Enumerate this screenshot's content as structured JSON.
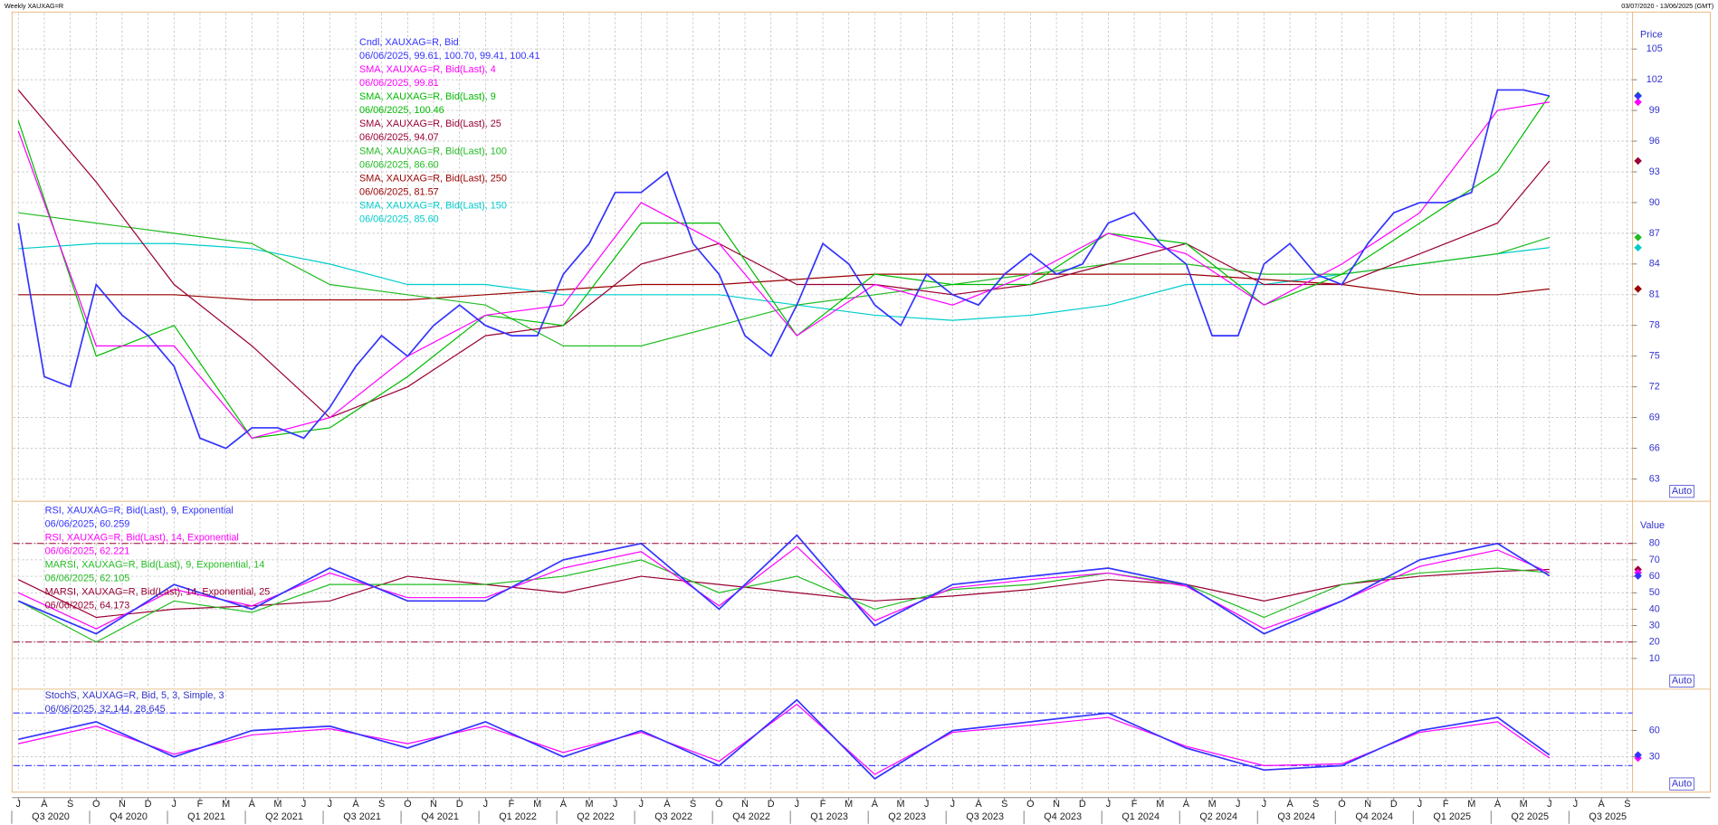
{
  "header": {
    "title": "Weekly XAUXAG=R",
    "range": "03/07/2020 - 13/06/2025 (GMT)"
  },
  "chart_data": [
    {
      "type": "line",
      "y_title": "Price",
      "auto_label": "Auto",
      "xlim": [
        -0.2,
        62.2
      ],
      "ylim": [
        61.1,
        108.5
      ],
      "yticks": [
        63,
        66,
        69,
        72,
        75,
        78,
        81,
        84,
        87,
        90,
        93,
        96,
        99,
        102,
        105
      ],
      "grid": true,
      "series": [
        {
          "name": "Cndl, XAUXAG=R, Bid",
          "legend_value": "06/06/2025, 99.61, 100.70, 99.41, 100.41",
          "color": "#3333ff",
          "x": [
            0,
            1,
            2,
            3,
            4,
            5,
            6,
            7,
            8,
            9,
            10,
            11,
            12,
            13,
            14,
            15,
            16,
            17,
            18,
            19,
            20,
            21,
            22,
            23,
            24,
            25,
            26,
            27,
            28,
            29,
            30,
            31,
            32,
            33,
            34,
            35,
            36,
            37,
            38,
            39,
            40,
            41,
            42,
            43,
            44,
            45,
            46,
            47,
            48,
            49,
            50,
            51,
            52,
            53,
            54,
            55,
            56,
            57,
            58,
            59
          ],
          "values": [
            88,
            73,
            72,
            82,
            79,
            77,
            74,
            67,
            66,
            68,
            68,
            67,
            70,
            74,
            77,
            75,
            78,
            80,
            78,
            77,
            77,
            83,
            86,
            91,
            91,
            93,
            86,
            83,
            77,
            75,
            80,
            86,
            84,
            80,
            78,
            83,
            81,
            80,
            83,
            85,
            83,
            84,
            88,
            89,
            86,
            84,
            77,
            77,
            84,
            86,
            83,
            82,
            86,
            89,
            90,
            90,
            91,
            101,
            101,
            100.41
          ]
        },
        {
          "name": "SMA, XAUXAG=R, Bid(Last),  4",
          "legend_value": "06/06/2025, 99.81",
          "color": "#ff00ff",
          "x": [
            0,
            3,
            6,
            9,
            12,
            15,
            18,
            21,
            24,
            27,
            30,
            33,
            36,
            39,
            42,
            45,
            48,
            51,
            54,
            57,
            59
          ],
          "values": [
            97,
            76,
            76,
            67,
            69,
            75,
            79,
            80,
            90,
            86,
            77,
            82,
            80,
            83,
            87,
            85,
            80,
            84,
            89,
            99,
            99.81
          ]
        },
        {
          "name": "SMA, XAUXAG=R, Bid(Last),  9",
          "legend_value": "06/06/2025, 100.46",
          "color": "#00bb00",
          "x": [
            0,
            3,
            6,
            9,
            12,
            15,
            18,
            21,
            24,
            27,
            30,
            33,
            36,
            39,
            42,
            45,
            48,
            51,
            54,
            57,
            59
          ],
          "values": [
            98,
            75,
            78,
            67,
            68,
            73,
            79,
            78,
            88,
            88,
            77,
            83,
            82,
            82,
            87,
            86,
            80,
            83,
            88,
            93,
            100.46
          ]
        },
        {
          "name": "SMA, XAUXAG=R, Bid(Last),  25",
          "legend_value": "06/06/2025, 94.07",
          "color": "#990033",
          "x": [
            0,
            3,
            6,
            9,
            12,
            15,
            18,
            21,
            24,
            27,
            30,
            33,
            36,
            39,
            42,
            45,
            48,
            51,
            54,
            57,
            59
          ],
          "values": [
            101,
            92,
            82,
            76,
            69,
            72,
            77,
            78,
            84,
            86,
            82,
            82,
            81,
            82,
            84,
            86,
            82,
            82,
            85,
            88,
            94.07
          ]
        },
        {
          "name": "SMA, XAUXAG=R, Bid(Last),  100",
          "legend_value": "06/06/2025, 86.60",
          "color": "#22bb22",
          "x": [
            0,
            3,
            6,
            9,
            12,
            15,
            18,
            21,
            24,
            27,
            30,
            33,
            36,
            39,
            42,
            45,
            48,
            51,
            54,
            57,
            59
          ],
          "values": [
            89,
            88,
            87,
            86,
            82,
            81,
            80,
            76,
            76,
            78,
            80,
            81,
            82,
            83,
            84,
            84,
            83,
            83,
            84,
            85,
            86.6
          ]
        },
        {
          "name": "SMA, XAUXAG=R, Bid(Last),  250",
          "legend_value": "06/06/2025, 81.57",
          "color": "#990000",
          "x": [
            0,
            3,
            6,
            9,
            12,
            15,
            18,
            21,
            24,
            27,
            30,
            33,
            36,
            39,
            42,
            45,
            48,
            51,
            54,
            57,
            59
          ],
          "values": [
            81,
            81,
            81,
            80.5,
            80.5,
            80.5,
            81,
            81.5,
            82,
            82,
            82.5,
            83,
            83,
            83,
            83,
            83,
            82.5,
            82,
            81,
            81,
            81.57
          ]
        },
        {
          "name": "SMA, XAUXAG=R, Bid(Last),  150",
          "legend_value": "06/06/2025, 85.60",
          "color": "#00cccc",
          "x": [
            0,
            3,
            6,
            9,
            12,
            15,
            18,
            21,
            24,
            27,
            30,
            33,
            36,
            39,
            42,
            45,
            48,
            51,
            54,
            57,
            59
          ],
          "values": [
            85.5,
            86,
            86,
            85.5,
            84,
            82,
            82,
            81,
            81,
            81,
            80,
            79,
            78.5,
            79,
            80,
            82,
            82,
            83,
            84,
            85,
            85.6
          ]
        }
      ]
    },
    {
      "type": "line",
      "y_title": "Value",
      "auto_label": "Auto",
      "xlim": [
        -0.2,
        62.2
      ],
      "ylim": [
        -8,
        104
      ],
      "yticks": [
        10,
        20,
        30,
        40,
        50,
        60,
        70,
        80
      ],
      "hlines": [
        80,
        20
      ],
      "hline_color": "#990033",
      "grid": true,
      "series": [
        {
          "name": "RSI, XAUXAG=R, Bid(Last),  9, Exponential",
          "legend_value": "06/06/2025, 60.259",
          "color": "#3333ff",
          "x": [
            0,
            3,
            6,
            9,
            12,
            15,
            18,
            21,
            24,
            27,
            30,
            33,
            36,
            39,
            42,
            45,
            48,
            51,
            54,
            57,
            59
          ],
          "values": [
            45,
            25,
            55,
            40,
            65,
            45,
            45,
            70,
            80,
            40,
            85,
            30,
            55,
            60,
            65,
            55,
            25,
            45,
            70,
            80,
            60.259
          ]
        },
        {
          "name": "RSI, XAUXAG=R, Bid(Last),  14, Exponential",
          "legend_value": "06/06/2025, 62.221",
          "color": "#ff00ff",
          "x": [
            0,
            3,
            6,
            9,
            12,
            15,
            18,
            21,
            24,
            27,
            30,
            33,
            36,
            39,
            42,
            45,
            48,
            51,
            54,
            57,
            59
          ],
          "values": [
            50,
            28,
            52,
            42,
            62,
            47,
            47,
            65,
            75,
            42,
            78,
            33,
            53,
            58,
            62,
            54,
            28,
            45,
            66,
            76,
            62.221
          ]
        },
        {
          "name": "MARSI, XAUXAG=R, Bid(Last),  9, Exponential, 14",
          "legend_value": "06/06/2025, 62.105",
          "color": "#22bb22",
          "x": [
            0,
            3,
            6,
            9,
            12,
            15,
            18,
            21,
            24,
            27,
            30,
            33,
            36,
            39,
            42,
            45,
            48,
            51,
            54,
            57,
            59
          ],
          "values": [
            45,
            20,
            45,
            38,
            55,
            55,
            55,
            60,
            70,
            50,
            60,
            40,
            52,
            55,
            62,
            55,
            35,
            55,
            62,
            65,
            62.105
          ]
        },
        {
          "name": "MARSI, XAUXAG=R, Bid(Last),  14, Exponential, 25",
          "legend_value": "06/06/2025, 64.173",
          "color": "#990033",
          "x": [
            0,
            3,
            6,
            9,
            12,
            15,
            18,
            21,
            24,
            27,
            30,
            33,
            36,
            39,
            42,
            45,
            48,
            51,
            54,
            57,
            59
          ],
          "values": [
            58,
            35,
            40,
            42,
            45,
            60,
            55,
            50,
            60,
            55,
            50,
            45,
            48,
            52,
            58,
            55,
            45,
            55,
            60,
            63,
            64.173
          ]
        }
      ]
    },
    {
      "type": "line",
      "legend": "StochS, XAUXAG=R, Bid,  5, 3, Simple, 3",
      "legend_value": "06/06/2025, 32.144, 28.645",
      "auto_label": "Auto",
      "xlim": [
        -0.2,
        62.2
      ],
      "ylim": [
        -9,
        106
      ],
      "yticks": [
        30,
        60
      ],
      "hlines": [
        80,
        20
      ],
      "hline_color": "#3333ff",
      "grid": true,
      "series": [
        {
          "color": "#3333ff",
          "x": [
            0,
            3,
            6,
            9,
            12,
            15,
            18,
            21,
            24,
            27,
            30,
            33,
            36,
            39,
            42,
            45,
            48,
            51,
            54,
            57,
            59
          ],
          "values": [
            50,
            70,
            30,
            60,
            65,
            40,
            70,
            30,
            60,
            20,
            95,
            5,
            60,
            70,
            80,
            40,
            15,
            20,
            60,
            75,
            32.144
          ]
        },
        {
          "color": "#ff00ff",
          "x": [
            0,
            3,
            6,
            9,
            12,
            15,
            18,
            21,
            24,
            27,
            30,
            33,
            36,
            39,
            42,
            45,
            48,
            51,
            54,
            57,
            59
          ],
          "values": [
            45,
            65,
            33,
            55,
            62,
            45,
            65,
            35,
            58,
            25,
            90,
            10,
            58,
            66,
            75,
            42,
            20,
            22,
            58,
            70,
            28.645
          ]
        }
      ],
      "xticks": [
        {
          "value": 0,
          "label": "J"
        },
        {
          "value": 1,
          "label": "A"
        },
        {
          "value": 2,
          "label": "S"
        },
        {
          "value": 3,
          "label": "O"
        },
        {
          "value": 4,
          "label": "N"
        },
        {
          "value": 5,
          "label": "D"
        },
        {
          "value": 6,
          "label": "J"
        },
        {
          "value": 7,
          "label": "F"
        },
        {
          "value": 8,
          "label": "M"
        },
        {
          "value": 9,
          "label": "A"
        },
        {
          "value": 10,
          "label": "M"
        },
        {
          "value": 11,
          "label": "J"
        },
        {
          "value": 12,
          "label": "J"
        },
        {
          "value": 13,
          "label": "A"
        },
        {
          "value": 14,
          "label": "S"
        },
        {
          "value": 15,
          "label": "O"
        },
        {
          "value": 16,
          "label": "N"
        },
        {
          "value": 17,
          "label": "D"
        },
        {
          "value": 18,
          "label": "J"
        },
        {
          "value": 19,
          "label": "F"
        },
        {
          "value": 20,
          "label": "M"
        },
        {
          "value": 21,
          "label": "A"
        },
        {
          "value": 22,
          "label": "M"
        },
        {
          "value": 23,
          "label": "J"
        },
        {
          "value": 24,
          "label": "J"
        },
        {
          "value": 25,
          "label": "A"
        },
        {
          "value": 26,
          "label": "S"
        },
        {
          "value": 27,
          "label": "O"
        },
        {
          "value": 28,
          "label": "N"
        },
        {
          "value": 29,
          "label": "D"
        },
        {
          "value": 30,
          "label": "J"
        },
        {
          "value": 31,
          "label": "F"
        },
        {
          "value": 32,
          "label": "M"
        },
        {
          "value": 33,
          "label": "A"
        },
        {
          "value": 34,
          "label": "M"
        },
        {
          "value": 35,
          "label": "J"
        },
        {
          "value": 36,
          "label": "J"
        },
        {
          "value": 37,
          "label": "A"
        },
        {
          "value": 38,
          "label": "S"
        },
        {
          "value": 39,
          "label": "O"
        },
        {
          "value": 40,
          "label": "N"
        },
        {
          "value": 41,
          "label": "D"
        },
        {
          "value": 42,
          "label": "J"
        },
        {
          "value": 43,
          "label": "F"
        },
        {
          "value": 44,
          "label": "M"
        },
        {
          "value": 45,
          "label": "A"
        },
        {
          "value": 46,
          "label": "M"
        },
        {
          "value": 47,
          "label": "J"
        },
        {
          "value": 48,
          "label": "J"
        },
        {
          "value": 49,
          "label": "A"
        },
        {
          "value": 50,
          "label": "S"
        },
        {
          "value": 51,
          "label": "O"
        },
        {
          "value": 52,
          "label": "N"
        },
        {
          "value": 53,
          "label": "D"
        },
        {
          "value": 54,
          "label": "J"
        },
        {
          "value": 55,
          "label": "F"
        },
        {
          "value": 56,
          "label": "M"
        },
        {
          "value": 57,
          "label": "A"
        },
        {
          "value": 58,
          "label": "M"
        },
        {
          "value": 59,
          "label": "J"
        },
        {
          "value": 60,
          "label": "J"
        },
        {
          "value": 61,
          "label": "A"
        },
        {
          "value": 62,
          "label": "S"
        }
      ],
      "quarters": [
        {
          "value": 0,
          "label": "Q3 2020"
        },
        {
          "value": 3,
          "label": "Q4 2020"
        },
        {
          "value": 6,
          "label": "Q1 2021"
        },
        {
          "value": 9,
          "label": "Q2 2021"
        },
        {
          "value": 12,
          "label": "Q3 2021"
        },
        {
          "value": 15,
          "label": "Q4 2021"
        },
        {
          "value": 18,
          "label": "Q1 2022"
        },
        {
          "value": 21,
          "label": "Q2 2022"
        },
        {
          "value": 24,
          "label": "Q3 2022"
        },
        {
          "value": 27,
          "label": "Q4 2022"
        },
        {
          "value": 30,
          "label": "Q1 2023"
        },
        {
          "value": 33,
          "label": "Q2 2023"
        },
        {
          "value": 36,
          "label": "Q3 2023"
        },
        {
          "value": 39,
          "label": "Q4 2023"
        },
        {
          "value": 42,
          "label": "Q1 2024"
        },
        {
          "value": 45,
          "label": "Q2 2024"
        },
        {
          "value": 48,
          "label": "Q3 2024"
        },
        {
          "value": 51,
          "label": "Q4 2024"
        },
        {
          "value": 54,
          "label": "Q1 2025"
        },
        {
          "value": 57,
          "label": "Q2 2025"
        },
        {
          "value": 60,
          "label": "Q3 2025"
        }
      ]
    }
  ]
}
